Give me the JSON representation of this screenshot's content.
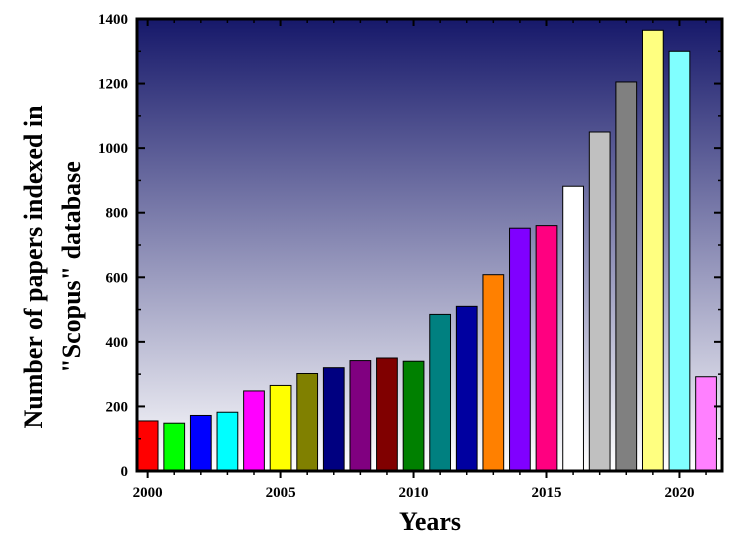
{
  "chart_data": {
    "type": "bar",
    "xlabel": "Years",
    "ylabel_line1": "Number of papers indexed in",
    "ylabel_line2": "\"Scopus\" database",
    "xlim": [
      1999.6,
      2021.6
    ],
    "ylim": [
      0,
      1400
    ],
    "x_ticks": [
      2000,
      2005,
      2010,
      2015,
      2020
    ],
    "x_tick_labels": [
      "2000",
      "2005",
      "2010",
      "2015",
      "2020"
    ],
    "y_ticks": [
      0,
      200,
      400,
      600,
      800,
      1000,
      1200,
      1400
    ],
    "y_tick_labels": [
      "0",
      "200",
      "400",
      "600",
      "800",
      "1000",
      "1200",
      "1400"
    ],
    "grid": false,
    "legend": "none",
    "background_gradient": [
      "#16186a",
      "#ffffff"
    ],
    "categories": [
      2000,
      2001,
      2002,
      2003,
      2004,
      2005,
      2006,
      2007,
      2008,
      2009,
      2010,
      2011,
      2012,
      2013,
      2014,
      2015,
      2016,
      2017,
      2018,
      2019,
      2020,
      2021
    ],
    "values": [
      155,
      148,
      172,
      182,
      248,
      265,
      302,
      320,
      342,
      350,
      340,
      485,
      510,
      608,
      752,
      760,
      882,
      1050,
      1205,
      1365,
      1300,
      292
    ],
    "colors": [
      "#ff0000",
      "#00ff00",
      "#0000ff",
      "#00ffff",
      "#ff00ff",
      "#ffff00",
      "#808000",
      "#000080",
      "#800080",
      "#800000",
      "#008000",
      "#008080",
      "#0000a0",
      "#ff8000",
      "#8000ff",
      "#ff0080",
      "#ffffff",
      "#c0c0c0",
      "#808080",
      "#ffff80",
      "#80ffff",
      "#ff80ff"
    ]
  }
}
